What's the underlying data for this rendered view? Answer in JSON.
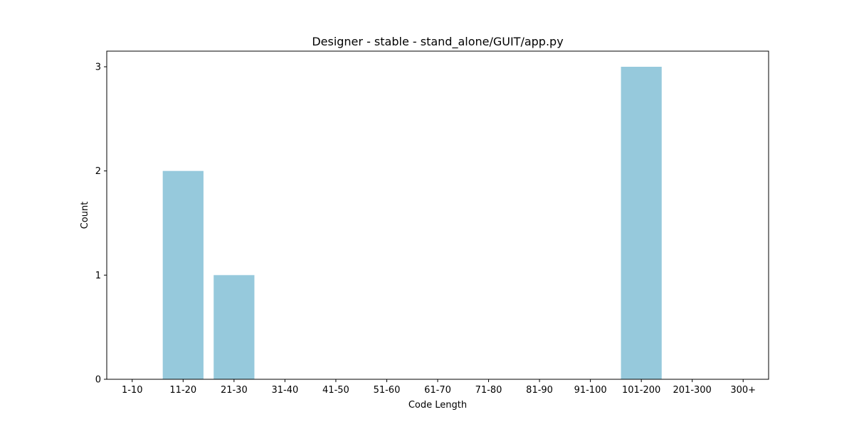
{
  "chart_data": {
    "type": "bar",
    "title": "Designer - stable - stand_alone/GUIT/app.py",
    "xlabel": "Code Length",
    "ylabel": "Count",
    "categories": [
      "1-10",
      "11-20",
      "21-30",
      "31-40",
      "41-50",
      "51-60",
      "61-70",
      "71-80",
      "81-90",
      "91-100",
      "101-200",
      "201-300",
      "300+"
    ],
    "values": [
      0,
      2,
      1,
      0,
      0,
      0,
      0,
      0,
      0,
      0,
      3,
      0,
      0
    ],
    "ylim": [
      0,
      3.15
    ],
    "yticks": [
      0,
      1,
      2,
      3
    ],
    "grid": false,
    "colors": {
      "bar": "#96c9dc",
      "axis": "#000000"
    }
  }
}
